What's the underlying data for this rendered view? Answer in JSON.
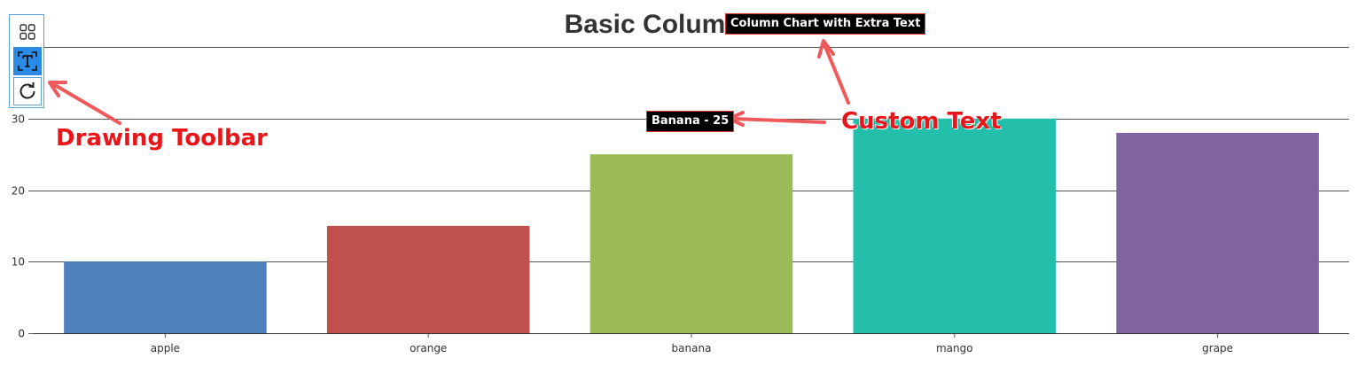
{
  "chart_data": {
    "type": "bar",
    "title": "Basic Column Chart",
    "categories": [
      "apple",
      "orange",
      "banana",
      "mango",
      "grape"
    ],
    "values": [
      10,
      15,
      25,
      30,
      28
    ],
    "colors": [
      "#4f81bc",
      "#c0504e",
      "#9bbb58",
      "#23bfaa",
      "#8064a1"
    ],
    "ylim": [
      0,
      40
    ],
    "yticks": [
      0,
      10,
      20,
      30
    ],
    "grid": true,
    "xlabel": "",
    "ylabel": ""
  },
  "custom_texts": [
    {
      "text": "Column Chart with Extra Text"
    },
    {
      "text": "Banana - 25"
    }
  ],
  "annotations": {
    "toolbar_label": "Drawing Toolbar",
    "custom_text_label": "Custom Text",
    "arrow_color": "#f0595b"
  },
  "toolbar": {
    "tools": [
      {
        "icon": "shapes-icon",
        "active": false
      },
      {
        "icon": "text-tool-icon",
        "active": true
      },
      {
        "icon": "reset-icon",
        "active": false
      }
    ]
  }
}
